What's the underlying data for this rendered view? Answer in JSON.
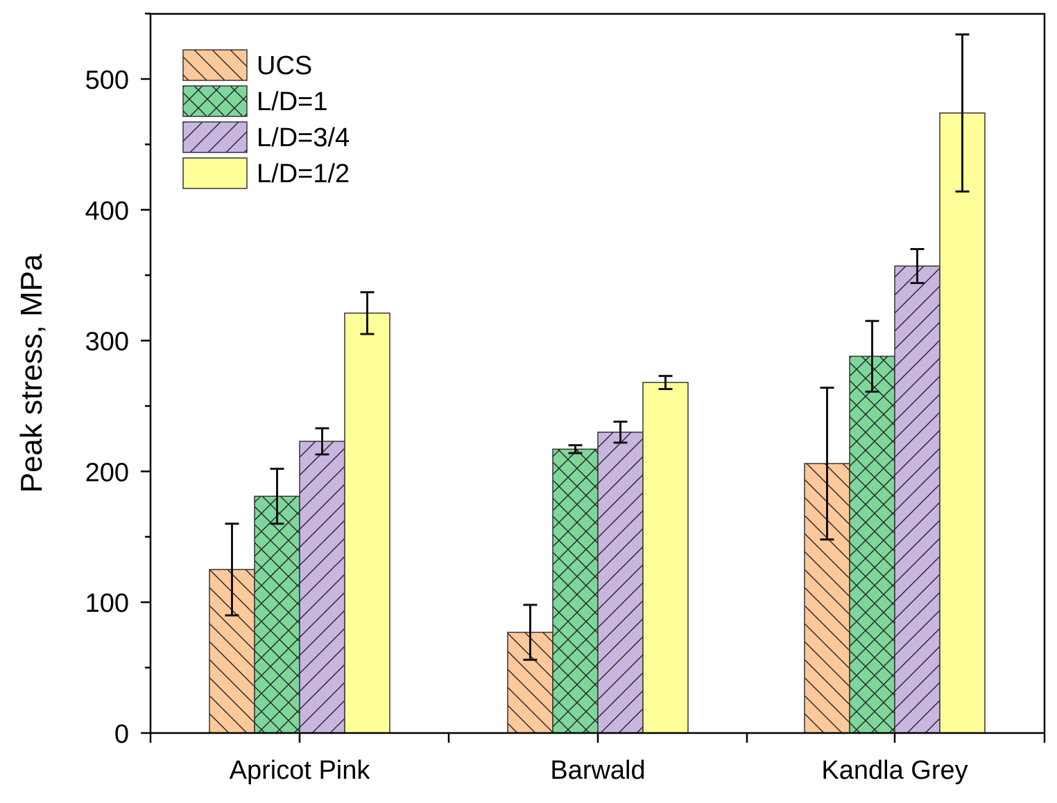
{
  "chart_data": {
    "type": "bar",
    "title": "",
    "xlabel": "",
    "ylabel": "Peak stress, MPa",
    "ylim": [
      0,
      550
    ],
    "yticks": [
      0,
      100,
      200,
      300,
      400,
      500
    ],
    "ytick_labels": [
      "0",
      "100",
      "200",
      "300",
      "400",
      "500"
    ],
    "grid": false,
    "legend_position": "top-left",
    "categories": [
      "Apricot Pink",
      "Barwald",
      "Kandla Grey"
    ],
    "series": [
      {
        "name": "UCS",
        "fill": "#fdc89a",
        "pattern": "backslash",
        "values": [
          125,
          77,
          206
        ],
        "errors": [
          35,
          21,
          58
        ]
      },
      {
        "name": "L/D=1",
        "fill": "#7ed69b",
        "pattern": "crosshatch",
        "values": [
          181,
          217,
          288
        ],
        "errors": [
          21,
          3,
          27
        ]
      },
      {
        "name": "L/D=3/4",
        "fill": "#c8b6e0",
        "pattern": "slash",
        "values": [
          223,
          230,
          357
        ],
        "errors": [
          10,
          8,
          13
        ]
      },
      {
        "name": "L/D=1/2",
        "fill": "#ffff99",
        "pattern": "none",
        "values": [
          321,
          268,
          474
        ],
        "errors": [
          16,
          5,
          60
        ]
      }
    ]
  }
}
